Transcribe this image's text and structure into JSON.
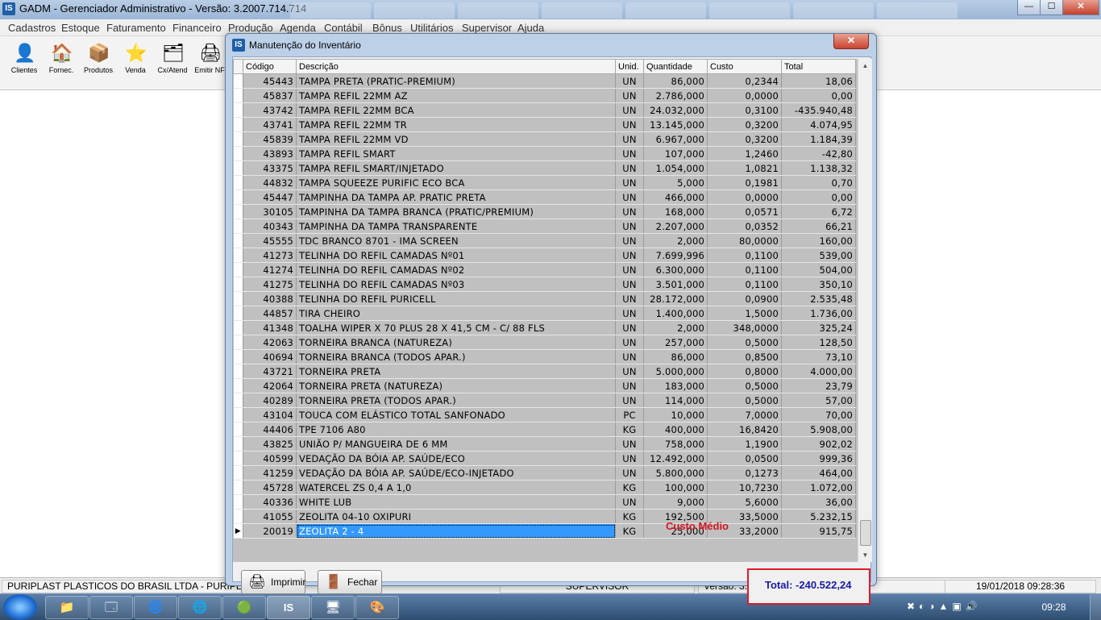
{
  "app": {
    "title": "GADM - Gerenciador Administrativo - Versão: 3.2007.714.714",
    "icon_label": "IS",
    "window_buttons": {
      "minimize": "—",
      "maximize": "☐",
      "close": "✕"
    }
  },
  "menu": [
    "Cadastros",
    "Estoque",
    "Faturamento",
    "Financeiro",
    "Produção",
    "Agenda",
    "Contábil",
    "Bônus",
    "Utilitários",
    "Supervisor",
    "Ajuda"
  ],
  "toolbar": [
    {
      "label": "Clientes",
      "icon": "person-icon",
      "glyph": "👤"
    },
    {
      "label": "Fornec.",
      "icon": "house-icon",
      "glyph": "🏠"
    },
    {
      "label": "Produtos",
      "icon": "box-icon",
      "glyph": "📦"
    },
    {
      "label": "Venda",
      "icon": "star-icon",
      "glyph": "⭐"
    },
    {
      "label": "Cx/Atend",
      "icon": "register-icon",
      "glyph": "🗂"
    },
    {
      "label": "Emitir NF",
      "icon": "invoice-icon",
      "glyph": "🖨"
    }
  ],
  "dialog": {
    "title": "Manutenção do Inventário",
    "icon_label": "IS",
    "columns": [
      "Código",
      "Descrição",
      "Unid.",
      "Quantidade",
      "Custo",
      "Total"
    ],
    "rows": [
      {
        "codigo": "45443",
        "descricao": "TAMPA PRETA (PRATIC-PREMIUM)",
        "unid": "UN",
        "quantidade": "86,000",
        "custo": "0,2344",
        "total": "18,06"
      },
      {
        "codigo": "45837",
        "descricao": "TAMPA REFIL 22MM AZ",
        "unid": "UN",
        "quantidade": "2.786,000",
        "custo": "0,0000",
        "total": "0,00"
      },
      {
        "codigo": "43742",
        "descricao": "TAMPA REFIL 22MM BCA",
        "unid": "UN",
        "quantidade": "24.032,000",
        "custo": "0,3100",
        "total": "-435.940,48"
      },
      {
        "codigo": "43741",
        "descricao": "TAMPA REFIL 22MM TR",
        "unid": "UN",
        "quantidade": "13.145,000",
        "custo": "0,3200",
        "total": "4.074,95"
      },
      {
        "codigo": "45839",
        "descricao": "TAMPA REFIL 22MM VD",
        "unid": "UN",
        "quantidade": "6.967,000",
        "custo": "0,3200",
        "total": "1.184,39"
      },
      {
        "codigo": "43893",
        "descricao": "TAMPA REFIL SMART",
        "unid": "UN",
        "quantidade": "107,000",
        "custo": "1,2460",
        "total": "-42,80"
      },
      {
        "codigo": "43375",
        "descricao": "TAMPA REFIL SMART/INJETADO",
        "unid": "UN",
        "quantidade": "1.054,000",
        "custo": "1,0821",
        "total": "1.138,32"
      },
      {
        "codigo": "44832",
        "descricao": "TAMPA SQUEEZE PURIFIC ECO BCA",
        "unid": "UN",
        "quantidade": "5,000",
        "custo": "0,1981",
        "total": "0,70"
      },
      {
        "codigo": "45447",
        "descricao": "TAMPINHA DA TAMPA AP. PRATIC PRETA",
        "unid": "UN",
        "quantidade": "466,000",
        "custo": "0,0000",
        "total": "0,00"
      },
      {
        "codigo": "30105",
        "descricao": "TAMPINHA DA TAMPA BRANCA (PRATIC/PREMIUM)",
        "unid": "UN",
        "quantidade": "168,000",
        "custo": "0,0571",
        "total": "6,72"
      },
      {
        "codigo": "40343",
        "descricao": "TAMPINHA DA TAMPA TRANSPARENTE",
        "unid": "UN",
        "quantidade": "2.207,000",
        "custo": "0,0352",
        "total": "66,21"
      },
      {
        "codigo": "45555",
        "descricao": "TDC BRANCO 8701 - IMA SCREEN",
        "unid": "UN",
        "quantidade": "2,000",
        "custo": "80,0000",
        "total": "160,00"
      },
      {
        "codigo": "41273",
        "descricao": "TELINHA DO REFIL CAMADAS Nº01",
        "unid": "UN",
        "quantidade": "7.699,996",
        "custo": "0,1100",
        "total": "539,00"
      },
      {
        "codigo": "41274",
        "descricao": "TELINHA DO REFIL CAMADAS Nº02",
        "unid": "UN",
        "quantidade": "6.300,000",
        "custo": "0,1100",
        "total": "504,00"
      },
      {
        "codigo": "41275",
        "descricao": "TELINHA DO REFIL CAMADAS Nº03",
        "unid": "UN",
        "quantidade": "3.501,000",
        "custo": "0,1100",
        "total": "350,10"
      },
      {
        "codigo": "40388",
        "descricao": "TELINHA DO REFIL PURICELL",
        "unid": "UN",
        "quantidade": "28.172,000",
        "custo": "0,0900",
        "total": "2.535,48"
      },
      {
        "codigo": "44857",
        "descricao": "TIRA CHEIRO",
        "unid": "UN",
        "quantidade": "1.400,000",
        "custo": "1,5000",
        "total": "1.736,00"
      },
      {
        "codigo": "41348",
        "descricao": "TOALHA WIPER X 70 PLUS 28 X 41,5 CM - C/ 88 FLS",
        "unid": "UN",
        "quantidade": "2,000",
        "custo": "348,0000",
        "total": "325,24"
      },
      {
        "codigo": "42063",
        "descricao": "TORNEIRA BRANCA (NATUREZA)",
        "unid": "UN",
        "quantidade": "257,000",
        "custo": "0,5000",
        "total": "128,50"
      },
      {
        "codigo": "40694",
        "descricao": "TORNEIRA BRANCA (TODOS APAR.)",
        "unid": "UN",
        "quantidade": "86,000",
        "custo": "0,8500",
        "total": "73,10"
      },
      {
        "codigo": "43721",
        "descricao": "TORNEIRA PRETA",
        "unid": "UN",
        "quantidade": "5.000,000",
        "custo": "0,8000",
        "total": "4.000,00"
      },
      {
        "codigo": "42064",
        "descricao": "TORNEIRA PRETA (NATUREZA)",
        "unid": "UN",
        "quantidade": "183,000",
        "custo": "0,5000",
        "total": "23,79"
      },
      {
        "codigo": "40289",
        "descricao": "TORNEIRA PRETA (TODOS APAR.)",
        "unid": "UN",
        "quantidade": "114,000",
        "custo": "0,5000",
        "total": "57,00"
      },
      {
        "codigo": "43104",
        "descricao": "TOUCA COM ELÁSTICO TOTAL SANFONADO",
        "unid": "PC",
        "quantidade": "10,000",
        "custo": "7,0000",
        "total": "70,00"
      },
      {
        "codigo": "44406",
        "descricao": "TPE 7106 A80",
        "unid": "KG",
        "quantidade": "400,000",
        "custo": "16,8420",
        "total": "5.908,00"
      },
      {
        "codigo": "43825",
        "descricao": "UNIÃO P/ MANGUEIRA DE 6 MM",
        "unid": "UN",
        "quantidade": "758,000",
        "custo": "1,1900",
        "total": "902,02"
      },
      {
        "codigo": "40599",
        "descricao": "VEDAÇÃO DA BÓIA AP. SAÚDE/ECO",
        "unid": "UN",
        "quantidade": "12.492,000",
        "custo": "0,0500",
        "total": "999,36"
      },
      {
        "codigo": "41259",
        "descricao": "VEDAÇÃO DA BÓIA AP. SAÚDE/ECO-INJETADO",
        "unid": "UN",
        "quantidade": "5.800,000",
        "custo": "0,1273",
        "total": "464,00"
      },
      {
        "codigo": "45728",
        "descricao": "WATERCEL ZS 0,4 A 1,0",
        "unid": "KG",
        "quantidade": "100,000",
        "custo": "10,7230",
        "total": "1.072,00"
      },
      {
        "codigo": "40336",
        "descricao": "WHITE LUB",
        "unid": "UN",
        "quantidade": "9,000",
        "custo": "5,6000",
        "total": "36,00"
      },
      {
        "codigo": "41055",
        "descricao": "ZEOLITA  04-10 OXIPURI",
        "unid": "KG",
        "quantidade": "192,500",
        "custo": "33,5000",
        "total": "5.232,15"
      },
      {
        "codigo": "20019",
        "descricao": "ZEOLITA 2 - 4",
        "unid": "KG",
        "quantidade": "25,000",
        "custo": "33,2000",
        "total": "915,75"
      }
    ],
    "current_row_indicator": "▶",
    "buttons": {
      "print": "Imprimir",
      "close": "Fechar"
    },
    "total_label": "Total: -240.522,24",
    "cost_method": "Custo Médio"
  },
  "statusbar": {
    "company": "PURIPLAST PLASTICOS DO BRASIL LTDA  - PURIPLAST",
    "user": "SUPERVISOR",
    "version": "Versão: 3.2007.714.714",
    "datetime": "19/01/2018 09:28:36"
  },
  "taskbar": {
    "clock": "09:28",
    "apps": [
      "📁",
      "🗔",
      "🌀",
      "🌐",
      "🟢",
      "IS",
      "🖥",
      "🎨"
    ]
  },
  "colors": {
    "total_text": "#1a1aa8",
    "highlight_border": "#e0192b",
    "custo_medio_text": "#d4161f",
    "selection": "#3399ff"
  }
}
